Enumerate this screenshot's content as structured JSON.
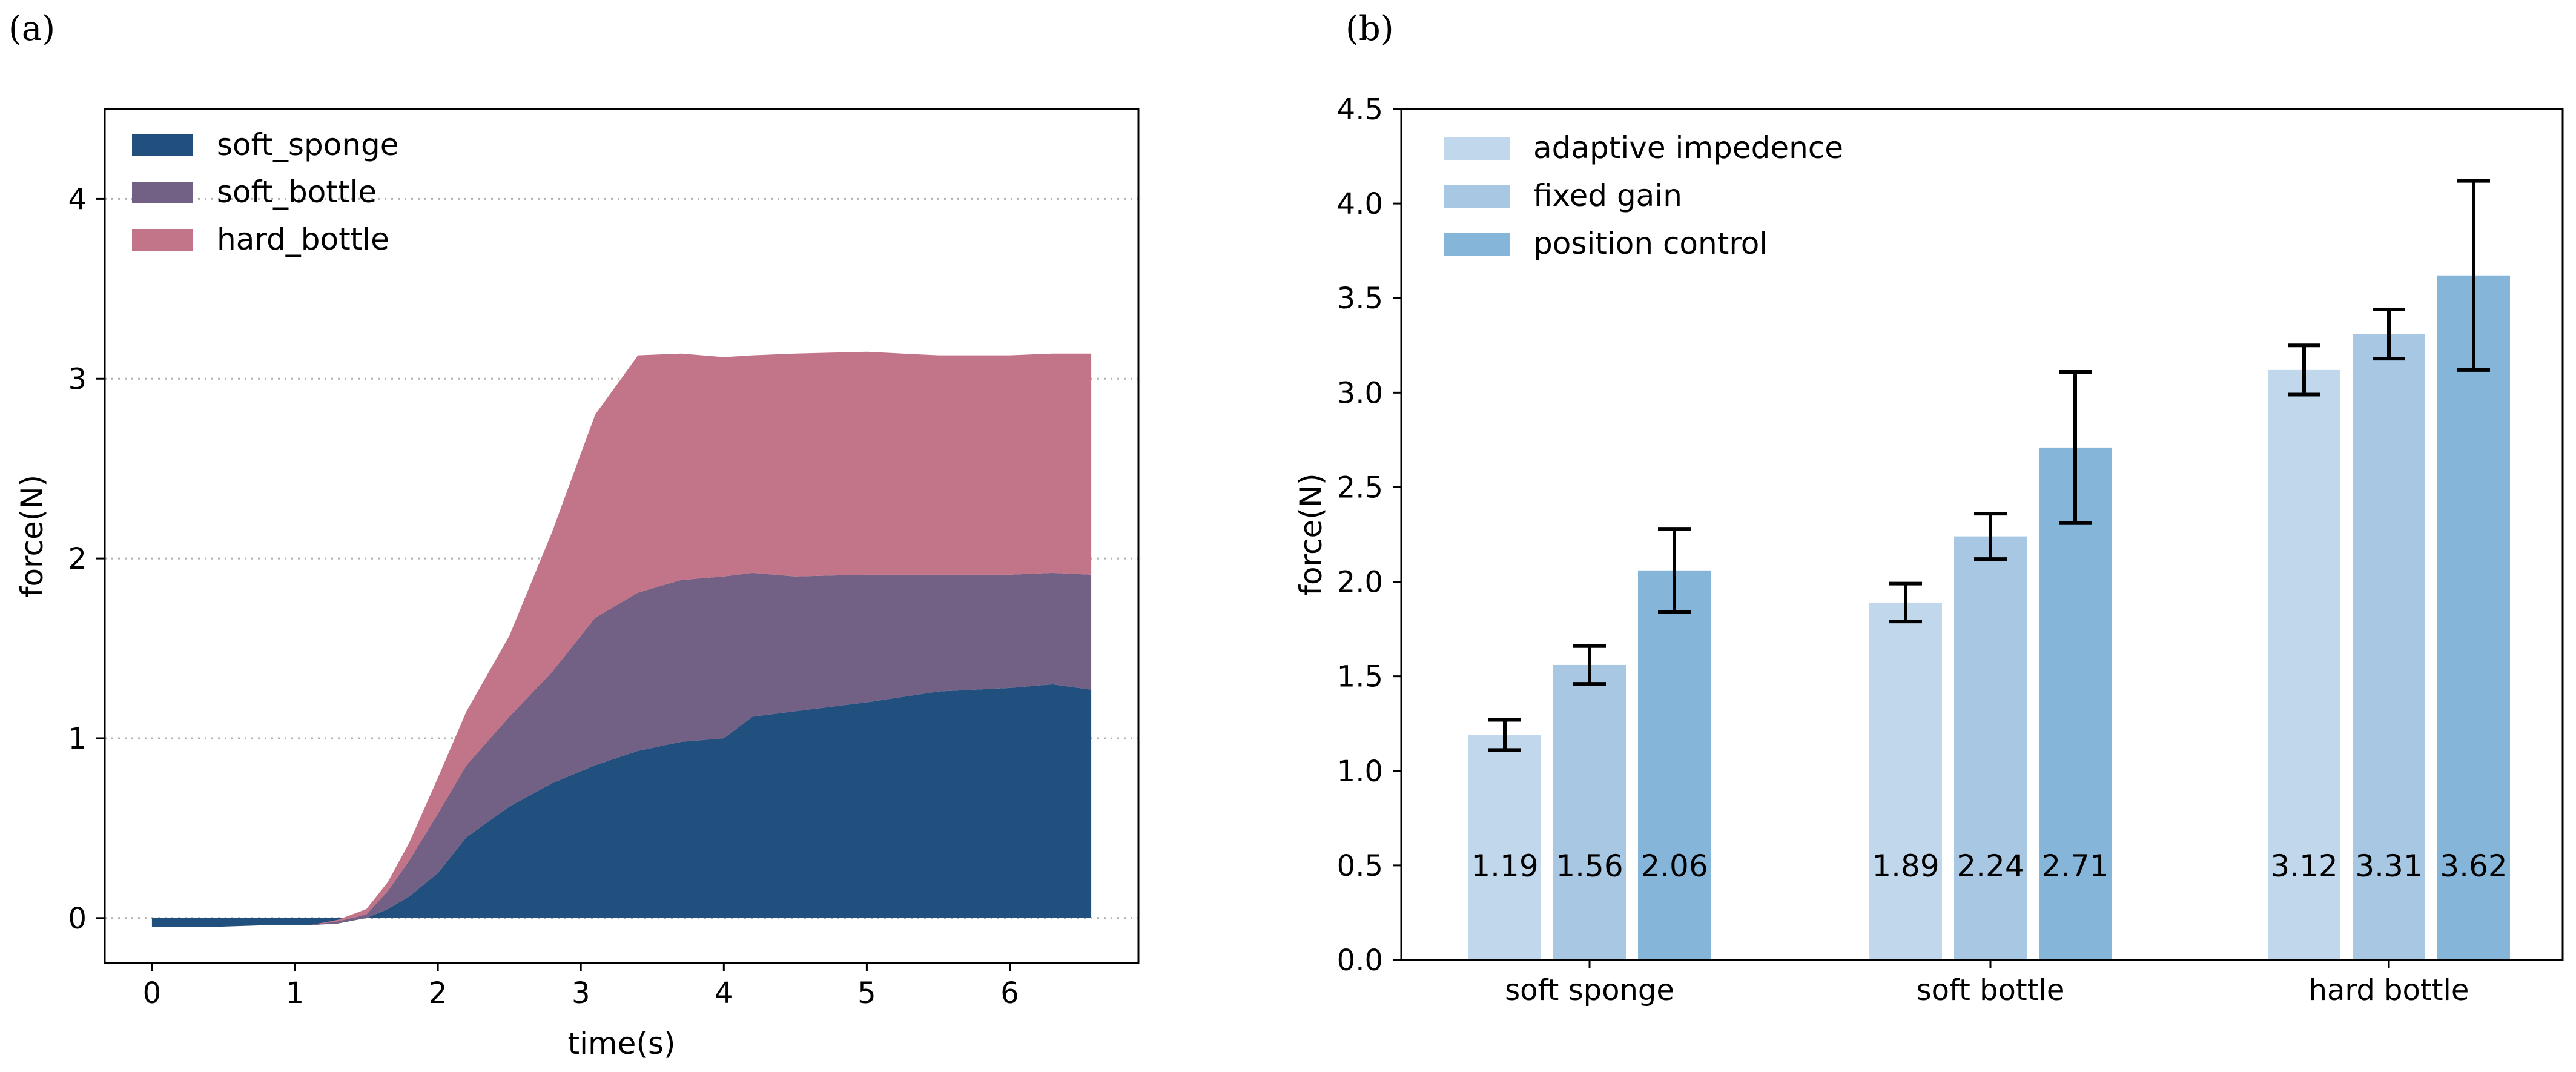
{
  "panels": {
    "a": "(a)",
    "b": "(b)"
  },
  "chart_data": [
    {
      "type": "area",
      "stacked": true,
      "xlabel": "time(s)",
      "ylabel": "force(N)",
      "xlim": [
        -0.33,
        6.9
      ],
      "ylim": [
        -0.25,
        4.5
      ],
      "xticks": [
        0,
        1,
        2,
        3,
        4,
        5,
        6
      ],
      "yticks": [
        0,
        1,
        2,
        3,
        4
      ],
      "grid": "horizontal-dotted",
      "legend": "top-left",
      "colors": {
        "soft_sponge": "#21507f",
        "soft_bottle": "#726185",
        "hard_bottle": "#c27489"
      },
      "series": [
        {
          "name": "soft_sponge",
          "x": [
            0,
            0.4,
            0.8,
            1.1,
            1.3,
            1.5,
            1.65,
            1.8,
            2.0,
            2.2,
            2.5,
            2.8,
            3.1,
            3.4,
            3.7,
            4.0,
            4.2,
            4.5,
            5.0,
            5.5,
            6.0,
            6.3,
            6.57
          ],
          "values": [
            -0.05,
            -0.05,
            -0.04,
            -0.04,
            -0.03,
            0.0,
            0.05,
            0.12,
            0.25,
            0.45,
            0.62,
            0.75,
            0.85,
            0.93,
            0.98,
            1.0,
            1.12,
            1.15,
            1.2,
            1.26,
            1.28,
            1.3,
            1.27
          ]
        },
        {
          "name": "soft_bottle",
          "x": [
            0,
            0.4,
            0.8,
            1.1,
            1.3,
            1.5,
            1.65,
            1.8,
            2.0,
            2.2,
            2.5,
            2.8,
            3.1,
            3.4,
            3.7,
            4.0,
            4.2,
            4.5,
            5.0,
            5.5,
            6.0,
            6.3,
            6.57
          ],
          "values": [
            0.0,
            0.0,
            0.0,
            0.0,
            0.01,
            0.02,
            0.1,
            0.2,
            0.33,
            0.4,
            0.5,
            0.62,
            0.82,
            0.88,
            0.9,
            0.9,
            0.8,
            0.75,
            0.71,
            0.65,
            0.63,
            0.62,
            0.64
          ]
        },
        {
          "name": "hard_bottle",
          "x": [
            0,
            0.4,
            0.8,
            1.1,
            1.3,
            1.5,
            1.65,
            1.8,
            2.0,
            2.2,
            2.5,
            2.8,
            3.1,
            3.4,
            3.7,
            4.0,
            4.2,
            4.5,
            5.0,
            5.5,
            6.0,
            6.3,
            6.57
          ],
          "values": [
            0.0,
            0.0,
            0.0,
            0.0,
            0.01,
            0.03,
            0.05,
            0.1,
            0.2,
            0.3,
            0.45,
            0.78,
            1.13,
            1.32,
            1.26,
            1.22,
            1.21,
            1.24,
            1.24,
            1.22,
            1.22,
            1.22,
            1.23
          ]
        }
      ]
    },
    {
      "type": "bar",
      "ylabel": "force(N)",
      "ylim": [
        0,
        4.5
      ],
      "yticks": [
        "0.0",
        "0.5",
        "1.0",
        "1.5",
        "2.0",
        "2.5",
        "3.0",
        "3.5",
        "4.0",
        "4.5"
      ],
      "legend": "top-left",
      "categories": [
        "soft sponge",
        "soft bottle",
        "hard bottle"
      ],
      "series": [
        {
          "name": "adaptive impedence",
          "color": "#c1d7ec",
          "values": [
            1.19,
            1.89,
            3.12
          ],
          "labels": [
            "1.19",
            "1.89",
            "3.12"
          ],
          "err": [
            0.08,
            0.1,
            0.13
          ]
        },
        {
          "name": "fixed gain",
          "color": "#a7c7e2",
          "values": [
            1.56,
            2.24,
            3.31
          ],
          "labels": [
            "1.56",
            "2.24",
            "3.31"
          ],
          "err": [
            0.1,
            0.12,
            0.13
          ]
        },
        {
          "name": "position control",
          "color": "#86b5da",
          "values": [
            2.06,
            2.71,
            3.62
          ],
          "labels": [
            "2.06",
            "2.71",
            "3.62"
          ],
          "err": [
            0.22,
            0.4,
            0.5
          ]
        }
      ]
    }
  ]
}
